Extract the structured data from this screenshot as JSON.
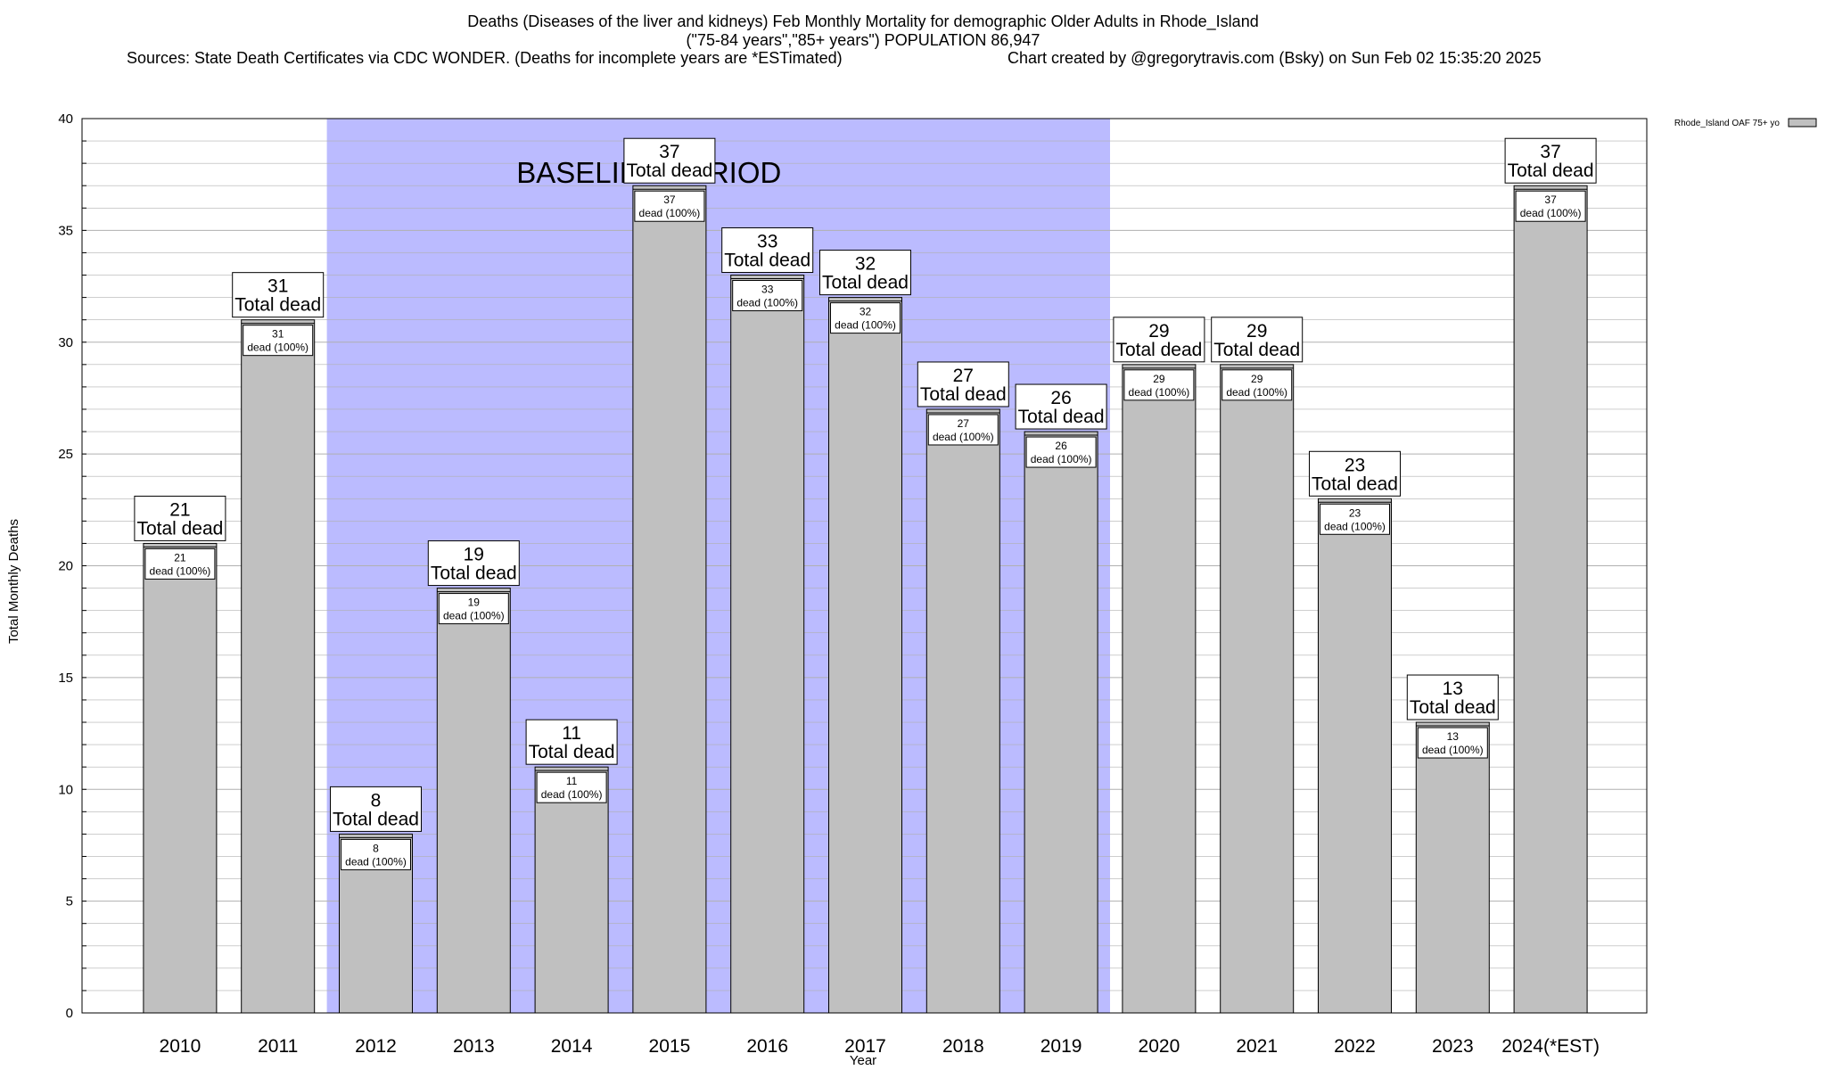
{
  "chart_data": {
    "type": "bar",
    "title_lines": [
      "Deaths (Diseases of the liver and kidneys) Feb Monthly Mortality for demographic Older Adults in Rhode_Island",
      "(\"75-84 years\",\"85+ years\") POPULATION 86,947"
    ],
    "sources_text": "Sources: State Death Certificates via CDC WONDER. (Deaths for incomplete years are *ESTimated)",
    "credit_text": "Chart created by @gregorytravis.com (Bsky) on Sun Feb 02 15:35:20 2025",
    "xlabel": "Year",
    "ylabel": "Total Monthly Deaths",
    "ylim": [
      0,
      40
    ],
    "yticks": [
      0,
      5,
      10,
      15,
      20,
      25,
      30,
      35,
      40
    ],
    "grid": true,
    "categories": [
      "2010",
      "2011",
      "2012",
      "2013",
      "2014",
      "2015",
      "2016",
      "2017",
      "2018",
      "2019",
      "2020",
      "2021",
      "2022",
      "2023",
      "2024(*EST)"
    ],
    "series": [
      {
        "name": "Rhode_Island OAF 75+ yo",
        "values": [
          21,
          31,
          8,
          19,
          11,
          37,
          33,
          32,
          27,
          26,
          29,
          29,
          23,
          13,
          37
        ]
      }
    ],
    "total_label_suffix": "Total dead",
    "segment_label_suffix": "dead (100%)",
    "baseline": {
      "label": "BASELINE PERIOD",
      "start_category": "2012",
      "end_category": "2019"
    },
    "legend_position": "top-right",
    "colors": {
      "bar": "#c0c0c0",
      "baseline_shade": "#bbbbff",
      "grid": "#b0b0b0"
    }
  }
}
